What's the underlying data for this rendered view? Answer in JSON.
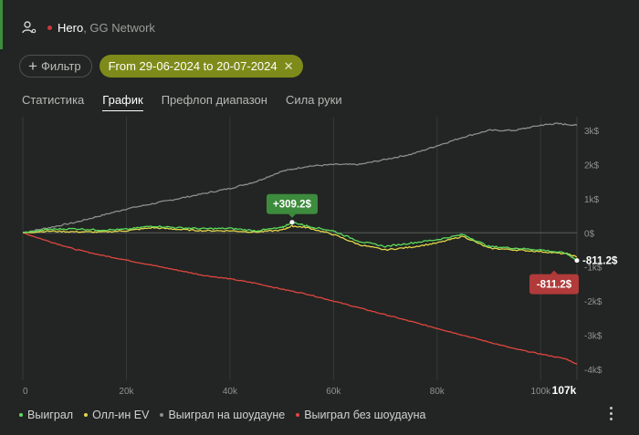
{
  "header": {
    "player": "Hero",
    "network": ", GG Network"
  },
  "filters": {
    "add_filter_label": "Фильтр",
    "date_range_label": "From 29-06-2024 to 20-07-2024"
  },
  "tabs": [
    {
      "label": "Статистика",
      "active": false
    },
    {
      "label": "График",
      "active": true
    },
    {
      "label": "Префлоп диапазон",
      "active": false
    },
    {
      "label": "Сила руки",
      "active": false
    }
  ],
  "colors": {
    "won": "#5ddc5d",
    "allin_ev": "#e5d64a",
    "showdown": "#8c8f8c",
    "non_showdown": "#e0463f",
    "accent": "#7e8b1a"
  },
  "chart_data": {
    "type": "line",
    "x_unit": "hands",
    "xlim": [
      0,
      107000
    ],
    "ylim": [
      -4000,
      3400
    ],
    "x_ticks": [
      "0",
      "20k",
      "40k",
      "60k",
      "80k",
      "100k"
    ],
    "x_end_label": "107k",
    "y_ticks": [
      "3k$",
      "2k$",
      "1k$",
      "0$",
      "-1k$",
      "-2k$",
      "-3k$",
      "-4k$"
    ],
    "y_tick_values": [
      3000,
      2000,
      1000,
      0,
      -1000,
      -2000,
      -3000,
      -4000
    ],
    "grid": {
      "vertical": true,
      "horizontal": false
    },
    "peak_annotation": {
      "x": 52000,
      "y": 309.2,
      "label": "+309.2$"
    },
    "end_value_label": "-811.2$",
    "end_badge_label": "-811.2$",
    "series": [
      {
        "name": "Выиграл",
        "key": "won",
        "x": [
          0,
          5000,
          10000,
          15000,
          20000,
          25000,
          30000,
          35000,
          40000,
          45000,
          50000,
          52000,
          55000,
          60000,
          65000,
          70000,
          75000,
          80000,
          85000,
          90000,
          95000,
          100000,
          105000,
          107000
        ],
        "y": [
          0,
          100,
          120,
          80,
          100,
          200,
          150,
          120,
          130,
          60,
          150,
          309,
          200,
          50,
          -250,
          -400,
          -300,
          -200,
          -50,
          -400,
          -450,
          -500,
          -600,
          -811
        ]
      },
      {
        "name": "Олл-ин EV",
        "key": "allin_ev",
        "x": [
          0,
          5000,
          10000,
          15000,
          20000,
          25000,
          30000,
          35000,
          40000,
          45000,
          50000,
          52000,
          55000,
          60000,
          65000,
          70000,
          75000,
          80000,
          85000,
          90000,
          95000,
          100000,
          105000,
          107000
        ],
        "y": [
          0,
          50,
          30,
          20,
          60,
          150,
          100,
          60,
          60,
          20,
          80,
          200,
          150,
          -50,
          -350,
          -500,
          -420,
          -300,
          -100,
          -450,
          -500,
          -550,
          -620,
          -700
        ]
      },
      {
        "name": "Выиграл на шоудауне",
        "key": "showdown",
        "x": [
          0,
          5000,
          10000,
          15000,
          20000,
          25000,
          30000,
          35000,
          40000,
          45000,
          50000,
          55000,
          60000,
          65000,
          70000,
          75000,
          80000,
          85000,
          90000,
          95000,
          100000,
          103000,
          107000
        ],
        "y": [
          0,
          150,
          300,
          500,
          700,
          850,
          1000,
          1150,
          1300,
          1500,
          1800,
          1950,
          2000,
          2000,
          2150,
          2300,
          2550,
          2800,
          3000,
          3000,
          3150,
          3200,
          3150
        ]
      },
      {
        "name": "Выиграл без шоудауна",
        "key": "non_showdown",
        "x": [
          0,
          5000,
          10000,
          15000,
          20000,
          25000,
          30000,
          35000,
          40000,
          45000,
          50000,
          55000,
          60000,
          65000,
          70000,
          75000,
          80000,
          85000,
          90000,
          95000,
          100000,
          105000,
          107000
        ],
        "y": [
          0,
          -250,
          -480,
          -650,
          -800,
          -950,
          -1100,
          -1250,
          -1350,
          -1480,
          -1650,
          -1800,
          -2000,
          -2200,
          -2400,
          -2600,
          -2800,
          -3000,
          -3200,
          -3400,
          -3550,
          -3700,
          -3850
        ]
      }
    ]
  }
}
